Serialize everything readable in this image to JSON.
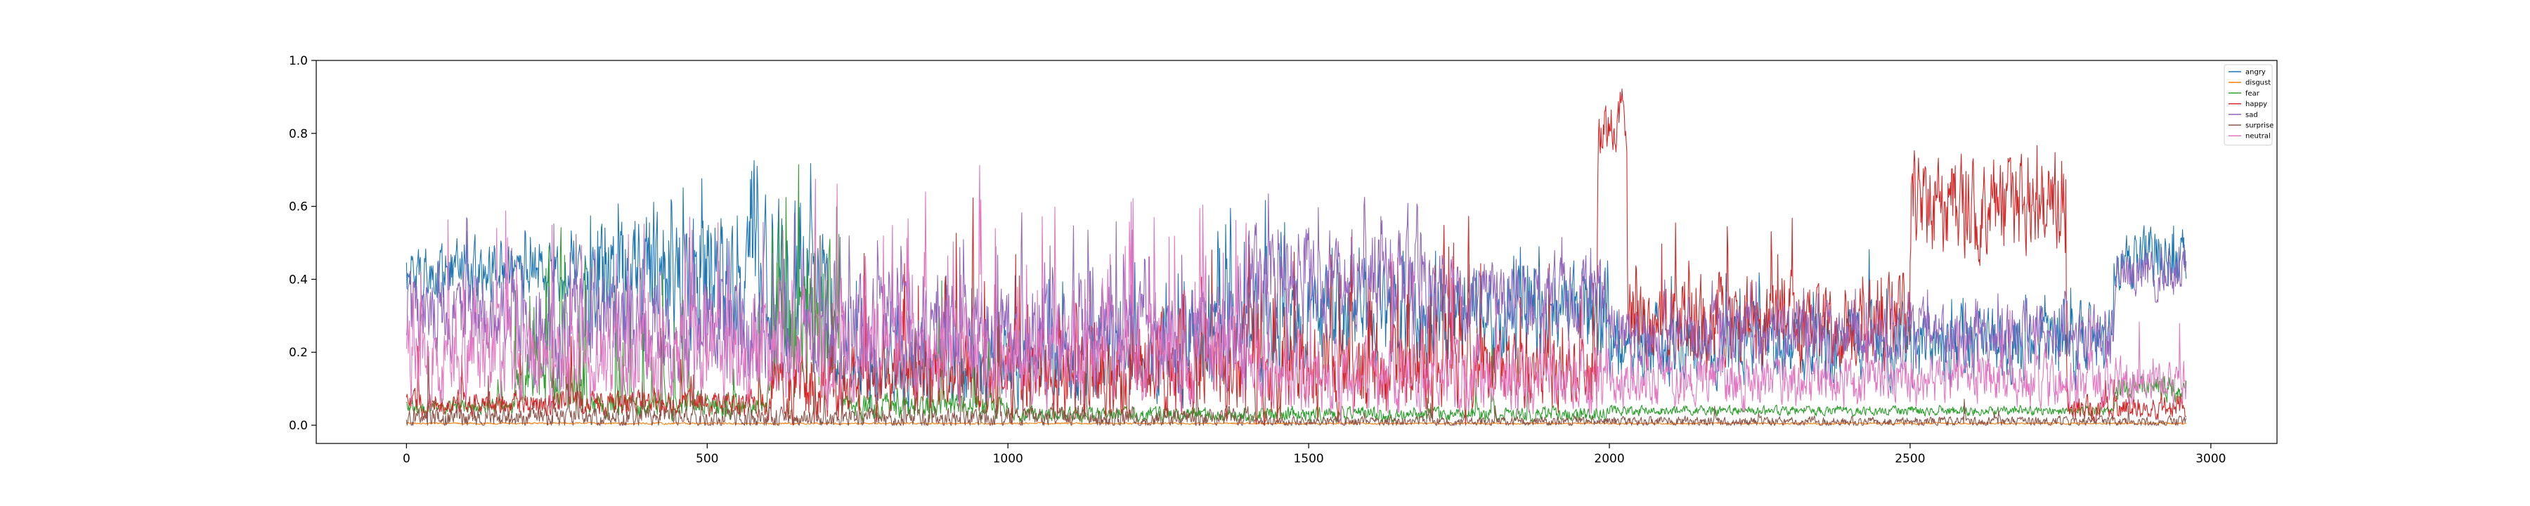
{
  "chart_data": {
    "type": "line",
    "title": "",
    "xlabel": "",
    "ylabel": "",
    "xlim": [
      -150,
      3110
    ],
    "ylim": [
      -0.05,
      1.0
    ],
    "xticks": [
      0,
      500,
      1000,
      1500,
      2000,
      2500,
      3000
    ],
    "xtick_labels": [
      "0",
      "500",
      "1000",
      "1500",
      "2000",
      "2500",
      "3000"
    ],
    "yticks": [
      0.0,
      0.2,
      0.4,
      0.6,
      0.8,
      1.0
    ],
    "ytick_labels": [
      "0.0",
      "0.2",
      "0.4",
      "0.6",
      "0.8",
      "1.0"
    ],
    "grid": false,
    "legend_position": "top-right",
    "n_points": 2960,
    "series": [
      {
        "name": "angry",
        "color": "#1f77b4",
        "segments": [
          {
            "x": [
              0,
              300
            ],
            "base": 0.42,
            "spread": 0.12,
            "spike_prob": 0.05,
            "spike_max": 0.62
          },
          {
            "x": [
              300,
              700
            ],
            "base": 0.38,
            "spread": 0.25,
            "spike_prob": 0.15,
            "spike_max": 0.86
          },
          {
            "x": [
              700,
              1300
            ],
            "base": 0.15,
            "spread": 0.15,
            "spike_prob": 0.1,
            "spike_max": 0.62
          },
          {
            "x": [
              1300,
              1500
            ],
            "base": 0.25,
            "spread": 0.2,
            "spike_prob": 0.1,
            "spike_max": 0.8
          },
          {
            "x": [
              1500,
              2000
            ],
            "base": 0.3,
            "spread": 0.2,
            "spike_prob": 0.08,
            "spike_max": 0.62
          },
          {
            "x": [
              2000,
              2840
            ],
            "base": 0.22,
            "spread": 0.15,
            "spike_prob": 0.05,
            "spike_max": 0.6
          },
          {
            "x": [
              2840,
              2960
            ],
            "base": 0.45,
            "spread": 0.12,
            "spike_prob": 0.08,
            "spike_max": 0.68
          }
        ]
      },
      {
        "name": "disgust",
        "color": "#ff7f0e",
        "segments": [
          {
            "x": [
              0,
              2960
            ],
            "base": 0.005,
            "spread": 0.004,
            "spike_prob": 0.0,
            "spike_max": 0.02
          }
        ]
      },
      {
        "name": "fear",
        "color": "#2ca02c",
        "segments": [
          {
            "x": [
              0,
              180
            ],
            "base": 0.05,
            "spread": 0.03,
            "spike_prob": 0.01,
            "spike_max": 0.2
          },
          {
            "x": [
              180,
              300
            ],
            "base": 0.1,
            "spread": 0.1,
            "spike_prob": 0.15,
            "spike_max": 0.76
          },
          {
            "x": [
              300,
              600
            ],
            "base": 0.05,
            "spread": 0.05,
            "spike_prob": 0.06,
            "spike_max": 0.82
          },
          {
            "x": [
              600,
              720
            ],
            "base": 0.2,
            "spread": 0.25,
            "spike_prob": 0.3,
            "spike_max": 0.91
          },
          {
            "x": [
              720,
              1000
            ],
            "base": 0.05,
            "spread": 0.05,
            "spike_prob": 0.04,
            "spike_max": 0.7
          },
          {
            "x": [
              1000,
              2000
            ],
            "base": 0.03,
            "spread": 0.03,
            "spike_prob": 0.01,
            "spike_max": 0.3
          },
          {
            "x": [
              2000,
              2840
            ],
            "base": 0.04,
            "spread": 0.02,
            "spike_prob": 0.0,
            "spike_max": 0.08
          },
          {
            "x": [
              2840,
              2960
            ],
            "base": 0.1,
            "spread": 0.05,
            "spike_prob": 0.0,
            "spike_max": 0.15
          }
        ]
      },
      {
        "name": "happy",
        "color": "#d62728",
        "segments": [
          {
            "x": [
              0,
              600
            ],
            "base": 0.06,
            "spread": 0.05,
            "spike_prob": 0.02,
            "spike_max": 0.4
          },
          {
            "x": [
              600,
              1000
            ],
            "base": 0.12,
            "spread": 0.15,
            "spike_prob": 0.06,
            "spike_max": 0.9
          },
          {
            "x": [
              1000,
              1800
            ],
            "base": 0.15,
            "spread": 0.2,
            "spike_prob": 0.1,
            "spike_max": 0.74
          },
          {
            "x": [
              1800,
              1980
            ],
            "base": 0.15,
            "spread": 0.15,
            "spike_prob": 0.06,
            "spike_max": 0.8
          },
          {
            "x": [
              1980,
              2030
            ],
            "base": 0.82,
            "spread": 0.1,
            "spike_prob": 0.2,
            "spike_max": 0.95
          },
          {
            "x": [
              2030,
              2500
            ],
            "base": 0.28,
            "spread": 0.18,
            "spike_prob": 0.06,
            "spike_max": 0.78
          },
          {
            "x": [
              2500,
              2760
            ],
            "base": 0.6,
            "spread": 0.2,
            "spike_prob": 0.15,
            "spike_max": 0.9
          },
          {
            "x": [
              2760,
              2960
            ],
            "base": 0.05,
            "spread": 0.05,
            "spike_prob": 0.02,
            "spike_max": 0.2
          }
        ]
      },
      {
        "name": "sad",
        "color": "#9467bd",
        "segments": [
          {
            "x": [
              0,
              200
            ],
            "base": 0.3,
            "spread": 0.15,
            "spike_prob": 0.05,
            "spike_max": 0.72
          },
          {
            "x": [
              200,
              1400
            ],
            "base": 0.25,
            "spread": 0.2,
            "spike_prob": 0.08,
            "spike_max": 0.78
          },
          {
            "x": [
              1400,
              1700
            ],
            "base": 0.4,
            "spread": 0.2,
            "spike_prob": 0.1,
            "spike_max": 0.85
          },
          {
            "x": [
              1700,
              2000
            ],
            "base": 0.35,
            "spread": 0.15,
            "spike_prob": 0.06,
            "spike_max": 0.62
          },
          {
            "x": [
              2000,
              2840
            ],
            "base": 0.25,
            "spread": 0.12,
            "spike_prob": 0.04,
            "spike_max": 0.5
          },
          {
            "x": [
              2840,
              2960
            ],
            "base": 0.42,
            "spread": 0.1,
            "spike_prob": 0.04,
            "spike_max": 0.55
          }
        ]
      },
      {
        "name": "surprise",
        "color": "#8c564b",
        "segments": [
          {
            "x": [
              0,
              1400
            ],
            "base": 0.02,
            "spread": 0.04,
            "spike_prob": 0.03,
            "spike_max": 0.5
          },
          {
            "x": [
              1400,
              2960
            ],
            "base": 0.01,
            "spread": 0.02,
            "spike_prob": 0.01,
            "spike_max": 0.15
          }
        ]
      },
      {
        "name": "neutral",
        "color": "#e377c2",
        "segments": [
          {
            "x": [
              0,
              1400
            ],
            "base": 0.18,
            "spread": 0.18,
            "spike_prob": 0.1,
            "spike_max": 0.94
          },
          {
            "x": [
              1400,
              2000
            ],
            "base": 0.12,
            "spread": 0.15,
            "spike_prob": 0.06,
            "spike_max": 0.7
          },
          {
            "x": [
              2000,
              2960
            ],
            "base": 0.12,
            "spread": 0.1,
            "spike_prob": 0.03,
            "spike_max": 0.45
          }
        ]
      }
    ]
  }
}
